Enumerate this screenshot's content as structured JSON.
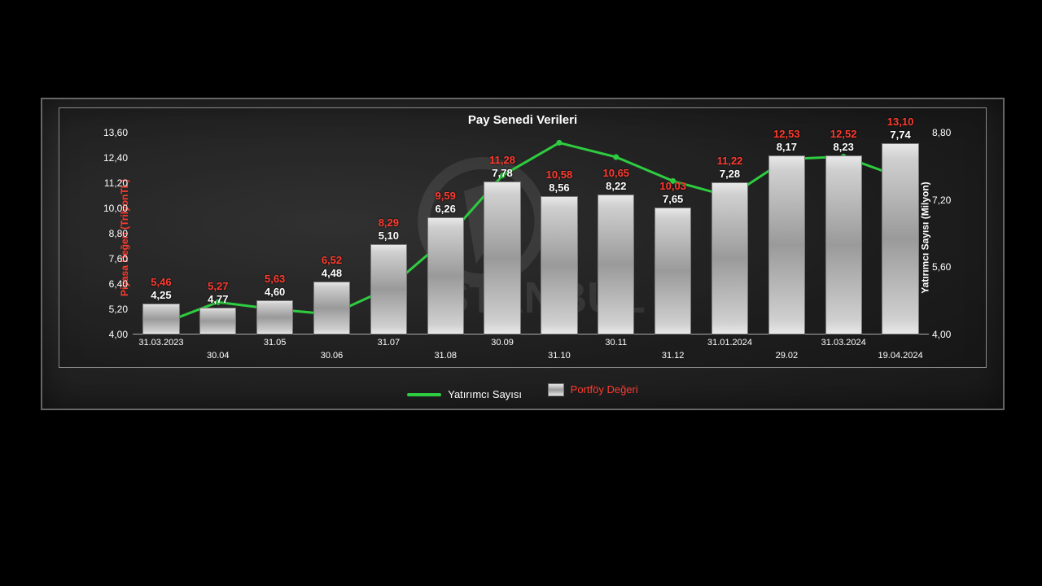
{
  "chart": {
    "title": "Pay Senedi Verileri",
    "y_left": {
      "label": "Piyasa Değeri (TrilyonTL)",
      "min": 4.0,
      "max": 13.6,
      "ticks": [
        "4,00",
        "5,20",
        "6,40",
        "7,60",
        "8,80",
        "10,00",
        "11,20",
        "12,40",
        "13,60"
      ],
      "tick_vals": [
        4.0,
        5.2,
        6.4,
        7.6,
        8.8,
        10.0,
        11.2,
        12.4,
        13.6
      ],
      "color": "#ff3b2f"
    },
    "y_right": {
      "label": "Yatırımcı Sayısı (Milyon)",
      "min": 4.0,
      "max": 8.8,
      "ticks": [
        "4,00",
        "5,60",
        "7,20",
        "8,80"
      ],
      "tick_vals": [
        4.0,
        5.6,
        7.2,
        8.8
      ],
      "color": "#ffffff"
    },
    "categories": [
      "31.03.2023",
      "30.04",
      "31.05",
      "30.06",
      "31.07",
      "31.08",
      "30.09",
      "31.10",
      "30.11",
      "31.12",
      "31.01.2024",
      "29.02",
      "31.03.2024",
      "19.04.2024"
    ],
    "bars": {
      "label_strs": [
        "5,46",
        "5,27",
        "5,63",
        "6,52",
        "8,29",
        "9,59",
        "11,28",
        "10,58",
        "10,65",
        "10,03",
        "11,22",
        "12,53",
        "12,52",
        "13,10"
      ],
      "values": [
        5.46,
        5.27,
        5.63,
        6.52,
        8.29,
        9.59,
        11.28,
        10.58,
        10.65,
        10.03,
        11.22,
        12.53,
        12.52,
        13.1
      ],
      "color_top": "#e8e8e8",
      "color_mid": "#9a9a9a",
      "width_ratio": 0.65,
      "label_color": "#ff3b2f"
    },
    "line": {
      "label_strs": [
        "4,25",
        "4,77",
        "4,60",
        "4,48",
        "5,10",
        "6,26",
        "7,78",
        "8,56",
        "8,22",
        "7,65",
        "7,28",
        "8,17",
        "8,23",
        "7,74"
      ],
      "values": [
        4.25,
        4.77,
        4.6,
        4.48,
        5.1,
        6.26,
        7.78,
        8.56,
        8.22,
        7.65,
        7.28,
        8.17,
        8.23,
        7.74
      ],
      "color": "#2ecc40",
      "stroke_width": 3,
      "label_color": "#ffffff"
    },
    "legend": {
      "line_label": "Yatırımcı Sayısı",
      "bar_label": "Portföy Değeri"
    },
    "background": "#222222",
    "grid_color": "#888888",
    "font_family": "Arial",
    "title_fontsize": 15,
    "tick_fontsize": 12,
    "label_fontsize": 13
  },
  "watermark_text": "İSTANBUL"
}
